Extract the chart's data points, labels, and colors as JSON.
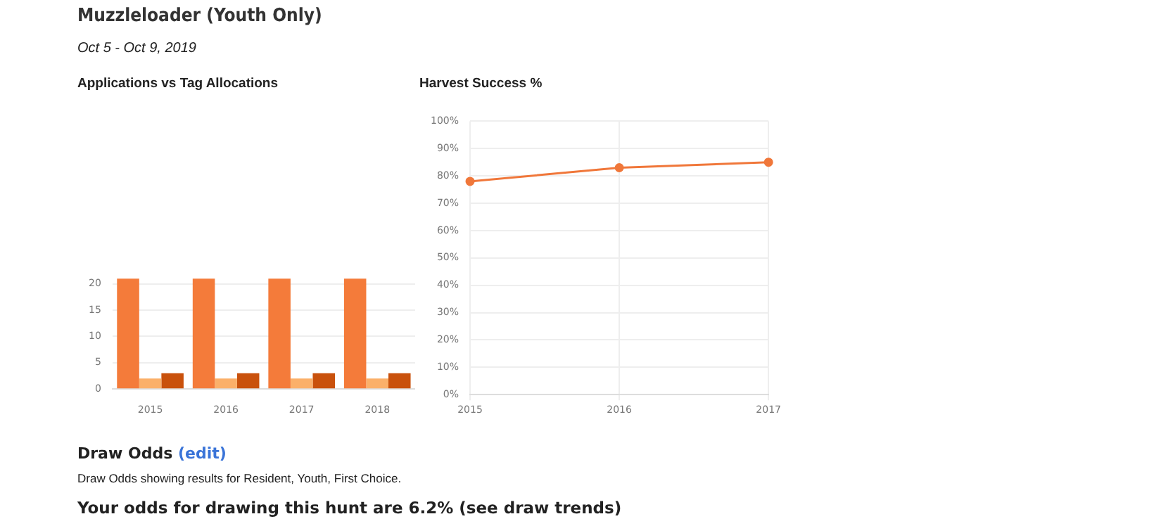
{
  "chart_data": [
    {
      "type": "other",
      "title": "Muzzleloader (Youth Only)",
      "subtitle": "Oct 5 - Oct 9, 2019"
    },
    {
      "type": "bar",
      "title": "Applications vs Tag Allocations",
      "categories": [
        "2015",
        "2016",
        "2017",
        "2018"
      ],
      "series": [
        {
          "color": "#f47b3a",
          "values": [
            21,
            21,
            21,
            21
          ]
        },
        {
          "color": "#fbb06a",
          "values": [
            2,
            2,
            2,
            2
          ]
        },
        {
          "color": "#c9510c",
          "values": [
            3,
            3,
            3,
            3
          ]
        }
      ],
      "ylim": [
        0,
        21.5
      ],
      "yticks": [
        0,
        5,
        10,
        15,
        20
      ],
      "grid": "y",
      "legend": false
    },
    {
      "type": "line",
      "title": "Harvest Success %",
      "categories": [
        "2015",
        "2016",
        "2017"
      ],
      "series": [
        {
          "color": "#f0773a",
          "values": [
            78,
            83,
            85
          ]
        }
      ],
      "ylim": [
        0,
        100
      ],
      "yticks": [
        {
          "value": 0,
          "label": "0%"
        },
        {
          "value": 10,
          "label": "10%"
        },
        {
          "value": 20,
          "label": "20%"
        },
        {
          "value": 30,
          "label": "30%"
        },
        {
          "value": 40,
          "label": "40%"
        },
        {
          "value": 50,
          "label": "50%"
        },
        {
          "value": 60,
          "label": "60%"
        },
        {
          "value": 70,
          "label": "70%"
        },
        {
          "value": 80,
          "label": "80%"
        },
        {
          "value": 90,
          "label": "90%"
        },
        {
          "value": 100,
          "label": "100%"
        }
      ],
      "grid": true,
      "legend": false,
      "marker": "circle",
      "line_style": "solid"
    },
    {
      "type": "other",
      "title": "Draw Odds",
      "annotations": [
        "(edit)",
        "Draw Odds showing results for Resident, Youth, First Choice.",
        "Your odds for drawing this hunt are 6.2% (see draw trends)"
      ]
    }
  ]
}
